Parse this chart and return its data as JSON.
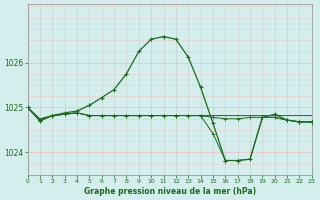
{
  "title": "Graphe pression niveau de la mer (hPa)",
  "background_color": "#d4eeed",
  "grid_color_minor": "#f0c8c8",
  "grid_color_major": "#c8c8c8",
  "line_color": "#1a6b1a",
  "xlim": [
    0,
    23
  ],
  "ylim": [
    1023.5,
    1027.3
  ],
  "yticks": [
    1024,
    1025,
    1026
  ],
  "xticks": [
    0,
    1,
    2,
    3,
    4,
    5,
    6,
    7,
    8,
    9,
    10,
    11,
    12,
    13,
    14,
    15,
    16,
    17,
    18,
    19,
    20,
    21,
    22,
    23
  ],
  "series_main": [
    1025.0,
    1024.7,
    1024.82,
    1024.88,
    1024.92,
    1025.05,
    1025.22,
    1025.4,
    1025.75,
    1026.25,
    1026.52,
    1026.58,
    1026.52,
    1026.12,
    1025.45,
    1024.65,
    1023.82,
    1023.82,
    1023.85,
    1024.78,
    1024.85,
    1024.72,
    1024.68,
    1024.68
  ],
  "series_flat1": [
    1025.0,
    1024.75,
    1024.82,
    1024.85,
    1024.88,
    1024.82,
    1024.82,
    1024.82,
    1024.82,
    1024.82,
    1024.82,
    1024.82,
    1024.82,
    1024.82,
    1024.82,
    1024.82,
    1024.82,
    1024.82,
    1024.82,
    1024.82,
    1024.82,
    1024.82,
    1024.82,
    1024.82
  ],
  "series_flat2": [
    1025.0,
    1024.72,
    1024.82,
    1024.85,
    1024.88,
    1024.82,
    1024.82,
    1024.82,
    1024.82,
    1024.82,
    1024.82,
    1024.82,
    1024.82,
    1024.82,
    1024.82,
    1024.78,
    1024.75,
    1024.75,
    1024.78,
    1024.78,
    1024.78,
    1024.72,
    1024.68,
    1024.68
  ],
  "series_dip": [
    1025.0,
    1024.72,
    1024.82,
    1024.85,
    1024.88,
    1024.82,
    1024.82,
    1024.82,
    1024.82,
    1024.82,
    1024.82,
    1024.82,
    1024.82,
    1024.82,
    1024.82,
    1024.42,
    1023.82,
    1023.82,
    1023.85,
    1024.78,
    1024.78,
    1024.72,
    1024.68,
    1024.68
  ]
}
